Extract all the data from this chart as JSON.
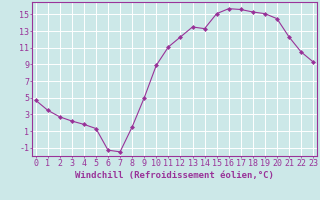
{
  "x": [
    0,
    1,
    2,
    3,
    4,
    5,
    6,
    7,
    8,
    9,
    10,
    11,
    12,
    13,
    14,
    15,
    16,
    17,
    18,
    19,
    20,
    21,
    22,
    23
  ],
  "y": [
    4.7,
    3.5,
    2.7,
    2.2,
    1.8,
    1.3,
    -1.3,
    -1.5,
    1.5,
    5.0,
    8.9,
    11.1,
    12.3,
    13.5,
    13.3,
    15.1,
    15.7,
    15.6,
    15.3,
    15.1,
    14.5,
    12.3,
    10.5,
    9.3
  ],
  "line_color": "#993399",
  "marker": "D",
  "marker_size": 2.0,
  "bg_color": "#cce8e8",
  "grid_color": "#ffffff",
  "xlabel": "Windchill (Refroidissement éolien,°C)",
  "xlabel_fontsize": 6.5,
  "tick_fontsize": 6,
  "ylim": [
    -2,
    16.5
  ],
  "yticks": [
    -1,
    1,
    3,
    5,
    7,
    9,
    11,
    13,
    15
  ],
  "xticks": [
    0,
    1,
    2,
    3,
    4,
    5,
    6,
    7,
    8,
    9,
    10,
    11,
    12,
    13,
    14,
    15,
    16,
    17,
    18,
    19,
    20,
    21,
    22,
    23
  ],
  "xlim": [
    -0.3,
    23.3
  ]
}
